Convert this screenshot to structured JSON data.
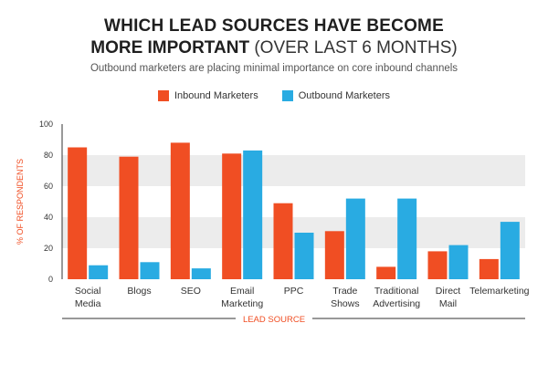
{
  "title_line1": "WHICH LEAD SOURCES HAVE BECOME",
  "title_line2_bold": "MORE IMPORTANT",
  "title_line2_rest": " (OVER LAST 6 MONTHS)",
  "subtitle": "Outbound marketers are placing minimal importance on core inbound channels",
  "colors": {
    "inbound": "#f04e23",
    "outbound": "#29abe2",
    "band": "#ececec"
  },
  "chart_data": {
    "type": "bar",
    "categories": [
      [
        "Social",
        "Media"
      ],
      [
        "Blogs"
      ],
      [
        "SEO"
      ],
      [
        "Email",
        "Marketing"
      ],
      [
        "PPC"
      ],
      [
        "Trade",
        "Shows"
      ],
      [
        "Traditional",
        "Advertising"
      ],
      [
        "Direct",
        "Mail"
      ],
      [
        "Telemarketing"
      ]
    ],
    "series": [
      {
        "name": "Inbound Marketers",
        "values": [
          85,
          79,
          88,
          81,
          49,
          31,
          8,
          18,
          13
        ]
      },
      {
        "name": "Outbound Marketers",
        "values": [
          9,
          11,
          7,
          83,
          30,
          52,
          52,
          22,
          37
        ]
      }
    ],
    "ylabel": "% OF RESPONDENTS",
    "xlabel": "LEAD SOURCE",
    "ylim": [
      0,
      100
    ],
    "yticks": [
      0,
      20,
      40,
      60,
      80,
      100
    ],
    "legend_position": "top-center"
  }
}
